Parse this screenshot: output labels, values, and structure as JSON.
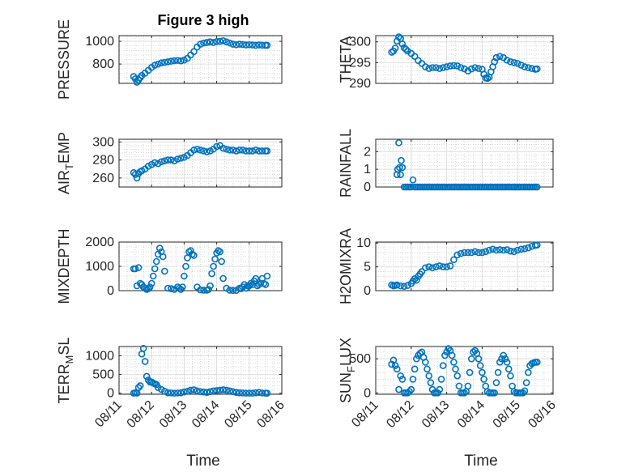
{
  "figure": {
    "title": "Figure 3 high",
    "marker_color": "#0072BD",
    "grid": true,
    "xlabel": "Time"
  },
  "chart_data": [
    {
      "type": "scatter",
      "ylabel": "PRESSURE",
      "ylabel_sub": "",
      "ylabel_rest": "",
      "xlim": [
        "08/11",
        "08/16"
      ],
      "ylim": [
        630,
        1050
      ],
      "xticks": [
        "08/11",
        "08/12",
        "08/13",
        "08/14",
        "08/15",
        "08/16"
      ],
      "show_xticklabels": false,
      "yticks": [
        800,
        1000
      ],
      "x": [
        11.45,
        11.5,
        11.55,
        11.6,
        11.65,
        11.7,
        11.8,
        11.9,
        12.0,
        12.1,
        12.2,
        12.3,
        12.4,
        12.5,
        12.6,
        12.7,
        12.8,
        12.9,
        13.0,
        13.1,
        13.2,
        13.3,
        13.4,
        13.5,
        13.6,
        13.7,
        13.8,
        13.9,
        14.0,
        14.1,
        14.2,
        14.3,
        14.4,
        14.5,
        14.6,
        14.7,
        14.8,
        14.9,
        15.0,
        15.1,
        15.2,
        15.3,
        15.4,
        15.5,
        15.55
      ],
      "y": [
        690,
        670,
        640,
        660,
        680,
        700,
        720,
        745,
        770,
        790,
        800,
        810,
        815,
        820,
        825,
        830,
        832,
        828,
        835,
        850,
        880,
        910,
        950,
        975,
        985,
        990,
        995,
        990,
        998,
        1000,
        1005,
        995,
        985,
        975,
        970,
        975,
        972,
        968,
        970,
        968,
        965,
        968,
        966,
        965,
        965
      ]
    },
    {
      "type": "scatter",
      "ylabel": "THETA",
      "ylabel_sub": "",
      "ylabel_rest": "",
      "xlim": [
        "08/11",
        "08/16"
      ],
      "ylim": [
        290,
        301.5
      ],
      "xticks": [
        "08/11",
        "08/12",
        "08/13",
        "08/14",
        "08/15",
        "08/16"
      ],
      "show_xticklabels": false,
      "yticks": [
        290,
        295,
        300
      ],
      "x": [
        11.45,
        11.5,
        11.55,
        11.6,
        11.65,
        11.7,
        11.75,
        11.8,
        11.85,
        11.9,
        12.0,
        12.1,
        12.2,
        12.3,
        12.4,
        12.5,
        12.6,
        12.7,
        12.8,
        12.9,
        13.0,
        13.1,
        13.2,
        13.3,
        13.4,
        13.5,
        13.6,
        13.7,
        13.8,
        13.9,
        14.0,
        14.05,
        14.1,
        14.15,
        14.2,
        14.25,
        14.3,
        14.35,
        14.4,
        14.5,
        14.6,
        14.7,
        14.8,
        14.9,
        15.0,
        15.1,
        15.2,
        15.3,
        15.4,
        15.5,
        15.55
      ],
      "y": [
        297.5,
        297.8,
        298.5,
        300.2,
        301.2,
        300.8,
        299.5,
        298.6,
        298.2,
        297.8,
        297.2,
        296.5,
        295.5,
        294.8,
        294.0,
        293.6,
        293.8,
        293.8,
        293.6,
        293.8,
        294.0,
        294.2,
        294.3,
        294.2,
        293.8,
        293.5,
        293.0,
        293.5,
        293.8,
        293.6,
        293.4,
        292.2,
        291.3,
        291.2,
        291.5,
        292.8,
        294.0,
        295.2,
        296.2,
        296.5,
        296.2,
        295.6,
        295.2,
        295.0,
        294.8,
        294.4,
        294.0,
        293.8,
        293.6,
        293.4,
        293.5
      ]
    },
    {
      "type": "scatter",
      "ylabel": "AIR",
      "ylabel_sub": "T",
      "ylabel_rest": "EMP",
      "xlim": [
        "08/11",
        "08/16"
      ],
      "ylim": [
        250,
        303
      ],
      "xticks": [
        "08/11",
        "08/12",
        "08/13",
        "08/14",
        "08/15",
        "08/16"
      ],
      "show_xticklabels": false,
      "yticks": [
        260,
        280,
        300
      ],
      "x": [
        11.45,
        11.5,
        11.55,
        11.6,
        11.65,
        11.7,
        11.8,
        11.9,
        12.0,
        12.1,
        12.2,
        12.3,
        12.4,
        12.5,
        12.6,
        12.7,
        12.8,
        12.9,
        13.0,
        13.1,
        13.2,
        13.3,
        13.4,
        13.5,
        13.6,
        13.7,
        13.8,
        13.9,
        14.0,
        14.1,
        14.2,
        14.3,
        14.4,
        14.5,
        14.6,
        14.7,
        14.8,
        14.9,
        15.0,
        15.1,
        15.2,
        15.3,
        15.4,
        15.5,
        15.55
      ],
      "y": [
        266,
        264,
        260,
        265,
        267,
        268,
        270,
        273,
        275,
        277,
        276,
        278,
        279,
        280,
        280,
        279,
        281,
        282,
        283,
        285,
        288,
        291,
        292,
        291,
        290,
        289,
        290,
        292,
        295,
        296,
        293,
        292,
        291,
        291,
        290,
        291,
        291,
        290,
        290,
        290,
        291,
        290,
        290,
        290,
        290
      ]
    },
    {
      "type": "scatter",
      "ylabel": "RAINFALL",
      "ylabel_sub": "",
      "ylabel_rest": "",
      "xlim": [
        "08/11",
        "08/16"
      ],
      "ylim": [
        0,
        2.7
      ],
      "xticks": [
        "08/11",
        "08/12",
        "08/13",
        "08/14",
        "08/15",
        "08/16"
      ],
      "show_xticklabels": false,
      "yticks": [
        0,
        1,
        2
      ],
      "x": [
        11.6,
        11.62,
        11.65,
        11.67,
        11.7,
        11.72,
        11.75,
        11.8,
        11.85,
        11.9,
        11.95,
        12.0,
        12.05,
        12.1,
        12.15,
        12.2,
        12.25,
        12.3,
        12.35,
        12.4,
        12.45,
        12.5,
        12.55,
        12.6,
        12.65,
        12.7,
        12.75,
        12.8,
        12.85,
        12.9,
        12.95,
        13.0,
        13.05,
        13.1,
        13.15,
        13.2,
        13.25,
        13.3,
        13.35,
        13.4,
        13.45,
        13.5,
        13.55,
        13.6,
        13.65,
        13.7,
        13.75,
        13.8,
        13.85,
        13.9,
        13.95,
        14.0,
        14.05,
        14.1,
        14.15,
        14.2,
        14.25,
        14.3,
        14.35,
        14.4,
        14.45,
        14.5,
        14.55,
        14.6,
        14.65,
        14.7,
        14.75,
        14.8,
        14.85,
        14.9,
        14.95,
        15.0,
        15.05,
        15.1,
        15.15,
        15.2,
        15.25,
        15.3,
        15.35,
        15.4,
        15.45,
        15.5,
        15.55
      ],
      "y": [
        0.7,
        1.0,
        2.5,
        1.1,
        0.7,
        1.5,
        1.1,
        0,
        0,
        0,
        0,
        0,
        0.4,
        0,
        0,
        0,
        0,
        0,
        0,
        0,
        0,
        0,
        0,
        0,
        0,
        0,
        0,
        0,
        0,
        0,
        0,
        0,
        0,
        0,
        0,
        0,
        0,
        0,
        0,
        0,
        0,
        0,
        0,
        0,
        0,
        0,
        0,
        0,
        0,
        0,
        0,
        0,
        0,
        0,
        0,
        0,
        0,
        0,
        0,
        0,
        0,
        0,
        0,
        0,
        0,
        0,
        0,
        0,
        0,
        0,
        0,
        0,
        0,
        0,
        0,
        0,
        0,
        0,
        0,
        0,
        0,
        0,
        0
      ]
    },
    {
      "type": "scatter",
      "ylabel": "MIXDEPTH",
      "ylabel_sub": "",
      "ylabel_rest": "",
      "xlim": [
        "08/11",
        "08/16"
      ],
      "ylim": [
        0,
        2000
      ],
      "xticks": [
        "08/11",
        "08/12",
        "08/13",
        "08/14",
        "08/15",
        "08/16"
      ],
      "show_xticklabels": false,
      "yticks": [
        0,
        1000,
        2000
      ],
      "x": [
        11.45,
        11.5,
        11.55,
        11.6,
        11.65,
        11.7,
        11.75,
        11.8,
        11.85,
        11.9,
        11.95,
        12.0,
        12.05,
        12.1,
        12.15,
        12.2,
        12.25,
        12.3,
        12.35,
        12.4,
        12.5,
        12.6,
        12.7,
        12.8,
        12.85,
        12.9,
        12.95,
        13.0,
        13.05,
        13.1,
        13.15,
        13.2,
        13.25,
        13.3,
        13.4,
        13.5,
        13.6,
        13.7,
        13.75,
        13.8,
        13.85,
        13.9,
        13.95,
        14.0,
        14.05,
        14.1,
        14.15,
        14.2,
        14.3,
        14.4,
        14.5,
        14.6,
        14.7,
        14.75,
        14.8,
        14.85,
        14.9,
        14.95,
        15.0,
        15.05,
        15.1,
        15.15,
        15.2,
        15.25,
        15.3,
        15.35,
        15.4,
        15.45,
        15.5,
        15.55
      ],
      "y": [
        900,
        900,
        200,
        950,
        300,
        250,
        150,
        100,
        50,
        80,
        150,
        300,
        600,
        900,
        1200,
        1500,
        1750,
        1600,
        1400,
        800,
        100,
        80,
        50,
        150,
        100,
        50,
        150,
        600,
        1000,
        1350,
        1600,
        1650,
        1500,
        1450,
        150,
        30,
        20,
        20,
        50,
        200,
        700,
        1000,
        1300,
        1550,
        1650,
        1600,
        1200,
        500,
        100,
        20,
        10,
        10,
        100,
        80,
        150,
        250,
        100,
        200,
        200,
        300,
        250,
        400,
        500,
        200,
        250,
        300,
        500,
        300,
        250,
        600
      ]
    },
    {
      "type": "scatter",
      "ylabel": "H2OMIXRA",
      "ylabel_sub": "",
      "ylabel_rest": "",
      "xlim": [
        "08/11",
        "08/16"
      ],
      "ylim": [
        0,
        10.2
      ],
      "xticks": [
        "08/11",
        "08/12",
        "08/13",
        "08/14",
        "08/15",
        "08/16"
      ],
      "show_xticklabels": false,
      "yticks": [
        0,
        5,
        10
      ],
      "x": [
        11.45,
        11.5,
        11.55,
        11.6,
        11.7,
        11.8,
        11.9,
        12.0,
        12.05,
        12.1,
        12.15,
        12.2,
        12.25,
        12.3,
        12.4,
        12.5,
        12.6,
        12.7,
        12.8,
        12.9,
        13.0,
        13.1,
        13.2,
        13.3,
        13.4,
        13.5,
        13.6,
        13.7,
        13.8,
        13.9,
        14.0,
        14.1,
        14.2,
        14.3,
        14.4,
        14.5,
        14.6,
        14.7,
        14.8,
        14.9,
        15.0,
        15.1,
        15.2,
        15.3,
        15.4,
        15.5,
        15.55
      ],
      "y": [
        1.2,
        1.0,
        1.1,
        1.2,
        1.0,
        0.9,
        1.1,
        1.5,
        2.0,
        2.5,
        2.2,
        3.0,
        3.5,
        4.0,
        4.8,
        5.0,
        4.8,
        5.0,
        5.2,
        5.0,
        5.0,
        5.2,
        6.5,
        7.5,
        7.8,
        8.0,
        8.0,
        8.0,
        8.2,
        8.0,
        8.0,
        8.2,
        8.5,
        8.7,
        8.5,
        8.6,
        8.5,
        8.6,
        8.3,
        8.2,
        8.5,
        8.7,
        8.8,
        9.0,
        9.3,
        9.5,
        9.6
      ]
    },
    {
      "type": "scatter",
      "ylabel": "TERR",
      "ylabel_sub": "M",
      "ylabel_rest": "SL",
      "xlim": [
        "08/11",
        "08/16"
      ],
      "ylim": [
        -30,
        1250
      ],
      "xticks": [
        "08/11",
        "08/12",
        "08/13",
        "08/14",
        "08/15",
        "08/16"
      ],
      "show_xticklabels": true,
      "yticks": [
        0,
        500,
        1000
      ],
      "x": [
        11.45,
        11.5,
        11.55,
        11.6,
        11.65,
        11.7,
        11.75,
        11.8,
        11.85,
        11.9,
        11.95,
        12.0,
        12.05,
        12.1,
        12.15,
        12.2,
        12.3,
        12.4,
        12.5,
        12.6,
        12.7,
        12.8,
        12.9,
        13.0,
        13.1,
        13.2,
        13.3,
        13.4,
        13.5,
        13.6,
        13.7,
        13.8,
        13.9,
        14.0,
        14.1,
        14.2,
        14.3,
        14.4,
        14.5,
        14.6,
        14.7,
        14.8,
        14.9,
        15.0,
        15.1,
        15.2,
        15.3,
        15.4,
        15.5,
        15.55
      ],
      "y": [
        0,
        10,
        0,
        150,
        200,
        1050,
        1200,
        850,
        450,
        350,
        300,
        300,
        270,
        250,
        230,
        150,
        100,
        50,
        10,
        5,
        0,
        5,
        10,
        30,
        50,
        80,
        90,
        60,
        40,
        30,
        20,
        40,
        60,
        70,
        80,
        90,
        80,
        60,
        40,
        20,
        10,
        5,
        0,
        0,
        0,
        10,
        20,
        5,
        0,
        0
      ]
    },
    {
      "type": "scatter",
      "ylabel": "SUN",
      "ylabel_sub": "F",
      "ylabel_rest": "LUX",
      "xlim": [
        "08/11",
        "08/16"
      ],
      "ylim": [
        -20,
        680
      ],
      "xticks": [
        "08/11",
        "08/12",
        "08/13",
        "08/14",
        "08/15",
        "08/16"
      ],
      "show_xticklabels": true,
      "yticks": [
        0,
        500
      ],
      "x": [
        11.45,
        11.5,
        11.55,
        11.6,
        11.65,
        11.7,
        11.75,
        11.8,
        11.85,
        11.9,
        11.95,
        12.0,
        12.05,
        12.1,
        12.15,
        12.2,
        12.25,
        12.3,
        12.35,
        12.4,
        12.45,
        12.5,
        12.55,
        12.6,
        12.65,
        12.7,
        12.75,
        12.8,
        12.85,
        12.9,
        12.95,
        13.0,
        13.05,
        13.1,
        13.15,
        13.2,
        13.25,
        13.3,
        13.35,
        13.4,
        13.45,
        13.5,
        13.55,
        13.6,
        13.65,
        13.7,
        13.75,
        13.8,
        13.85,
        13.9,
        13.95,
        14.0,
        14.05,
        14.1,
        14.15,
        14.2,
        14.25,
        14.3,
        14.35,
        14.4,
        14.45,
        14.5,
        14.55,
        14.6,
        14.65,
        14.7,
        14.75,
        14.8,
        14.85,
        14.9,
        14.95,
        15.0,
        15.05,
        15.1,
        15.15,
        15.2,
        15.25,
        15.3,
        15.35,
        15.4,
        15.45,
        15.5,
        15.55
      ],
      "y": [
        420,
        480,
        400,
        350,
        50,
        250,
        200,
        0,
        0,
        0,
        20,
        50,
        200,
        350,
        500,
        550,
        580,
        600,
        520,
        450,
        350,
        250,
        150,
        50,
        0,
        0,
        0,
        50,
        200,
        400,
        550,
        600,
        650,
        620,
        550,
        450,
        350,
        250,
        100,
        0,
        0,
        0,
        20,
        100,
        300,
        500,
        600,
        620,
        580,
        500,
        400,
        300,
        200,
        100,
        20,
        0,
        0,
        0,
        0,
        150,
        300,
        450,
        500,
        550,
        500,
        450,
        350,
        250,
        100,
        20,
        0,
        0,
        0,
        0,
        0,
        30,
        150,
        300,
        400,
        430,
        440,
        450,
        450
      ]
    }
  ]
}
